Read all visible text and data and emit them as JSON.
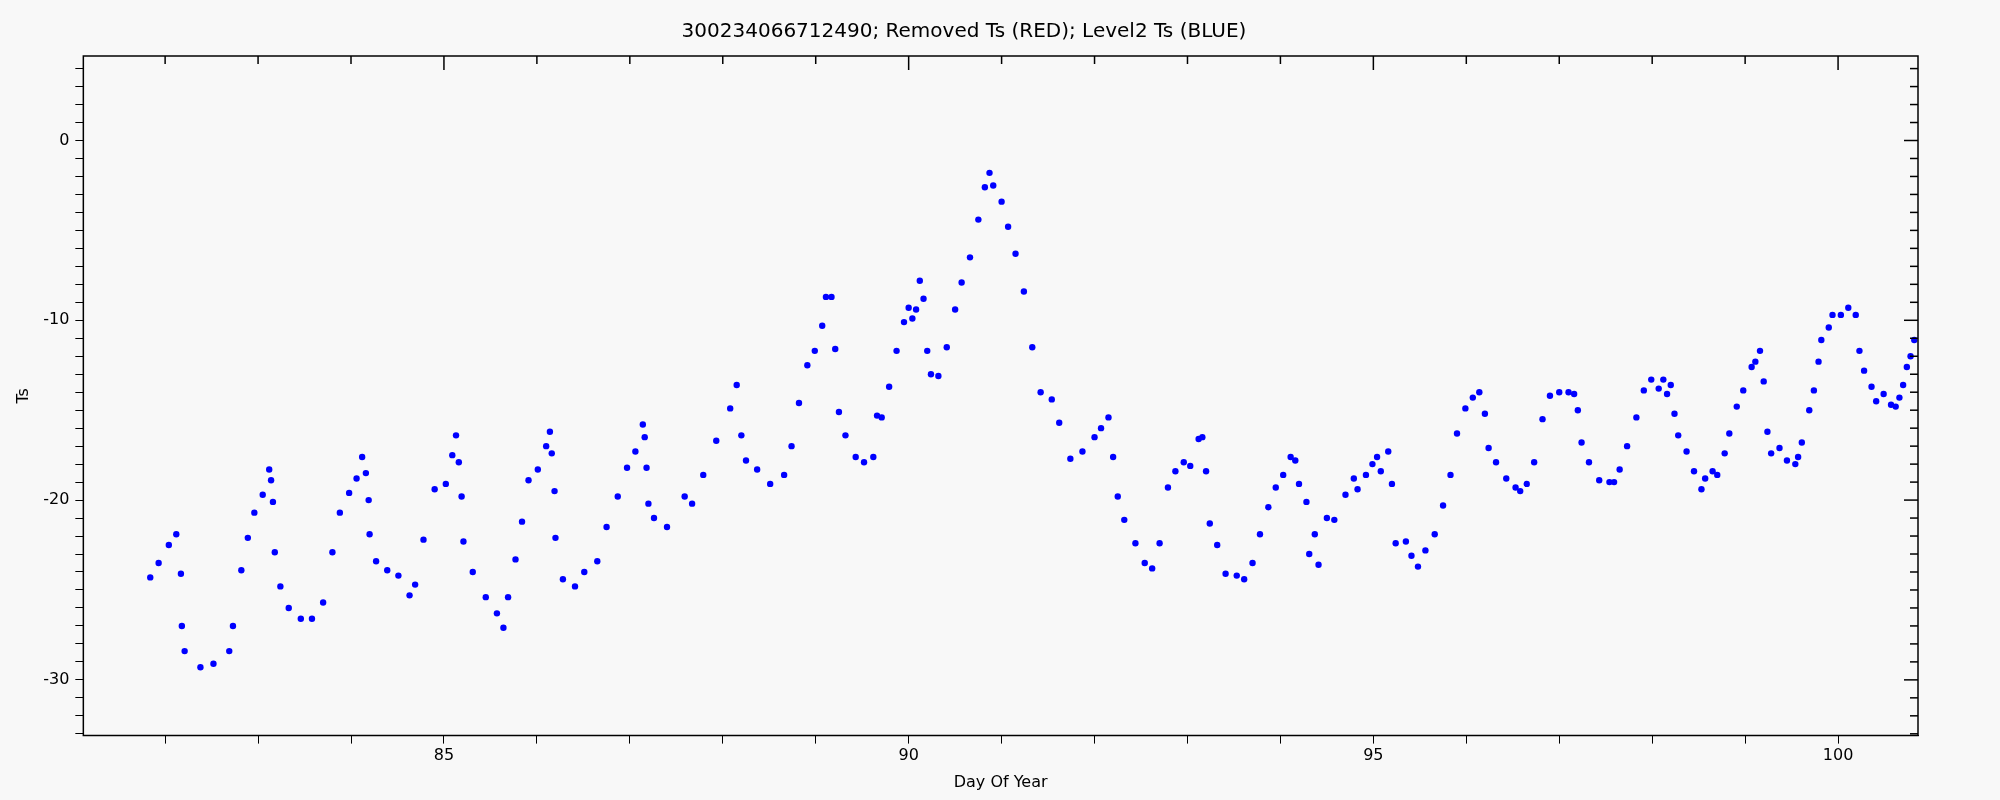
{
  "chart_data": {
    "type": "scatter",
    "title": "300234066712490; Removed Ts (RED); Level2 Ts (BLUE)",
    "xlabel": "Day Of Year",
    "ylabel": "Ts",
    "xlim": [
      81.12,
      100.86
    ],
    "xticks": [
      {
        "value": 82,
        "label": null
      },
      {
        "value": 83,
        "label": null
      },
      {
        "value": 84,
        "label": null
      },
      85,
      {
        "value": 86,
        "label": null
      },
      {
        "value": 87,
        "label": null
      },
      {
        "value": 88,
        "label": null
      },
      {
        "value": 89,
        "label": null
      },
      90,
      {
        "value": 91,
        "label": null
      },
      {
        "value": 92,
        "label": null
      },
      {
        "value": 93,
        "label": null
      },
      {
        "value": 94,
        "label": null
      },
      95,
      {
        "value": 96,
        "label": null
      },
      {
        "value": 97,
        "label": null
      },
      {
        "value": 98,
        "label": null
      },
      {
        "value": 99,
        "label": null
      },
      100
    ],
    "ylim": [
      -33.1,
      4.7
    ],
    "yticks": [
      {
        "value": -33,
        "label": null
      },
      {
        "value": -32,
        "label": null
      },
      {
        "value": -31,
        "label": null
      },
      -30,
      {
        "value": -29,
        "label": null
      },
      {
        "value": -28,
        "label": null
      },
      {
        "value": -27,
        "label": null
      },
      {
        "value": -26,
        "label": null
      },
      {
        "value": -25,
        "label": null
      },
      {
        "value": -24,
        "label": null
      },
      {
        "value": -23,
        "label": null
      },
      {
        "value": -22,
        "label": null
      },
      {
        "value": -21,
        "label": null
      },
      -20,
      {
        "value": -19,
        "label": null
      },
      {
        "value": -18,
        "label": null
      },
      {
        "value": -17,
        "label": null
      },
      {
        "value": -16,
        "label": null
      },
      {
        "value": -15,
        "label": null
      },
      {
        "value": -14,
        "label": null
      },
      {
        "value": -13,
        "label": null
      },
      {
        "value": -12,
        "label": null
      },
      {
        "value": -11,
        "label": null
      },
      -10,
      {
        "value": -9,
        "label": null
      },
      {
        "value": -8,
        "label": null
      },
      {
        "value": -7,
        "label": null
      },
      {
        "value": -6,
        "label": null
      },
      {
        "value": -5,
        "label": null
      },
      {
        "value": -4,
        "label": null
      },
      {
        "value": -3,
        "label": null
      },
      {
        "value": -2,
        "label": null
      },
      {
        "value": -1,
        "label": null
      },
      0,
      {
        "value": 1,
        "label": null
      },
      {
        "value": 2,
        "label": null
      },
      {
        "value": 3,
        "label": null
      },
      {
        "value": 4,
        "label": null
      }
    ],
    "grid": false,
    "legend": false,
    "marker": "circle",
    "series": [
      {
        "color": "#0000ff",
        "x": [
          81.84,
          81.93,
          82.04,
          82.12,
          82.17,
          82.18,
          82.21,
          82.38,
          82.52,
          82.69,
          82.73,
          82.82,
          82.89,
          82.96,
          83.05,
          83.12,
          83.14,
          83.16,
          83.18,
          83.24,
          83.33,
          83.46,
          83.58,
          83.7,
          83.8,
          83.88,
          83.98,
          84.06,
          84.12,
          84.16,
          84.19,
          84.2,
          84.27,
          84.39,
          84.51,
          84.63,
          84.69,
          84.78,
          84.9,
          85.02,
          85.09,
          85.13,
          85.16,
          85.19,
          85.21,
          85.31,
          85.45,
          85.57,
          85.64,
          85.69,
          85.77,
          85.84,
          85.91,
          86.01,
          86.1,
          86.14,
          86.16,
          86.19,
          86.2,
          86.28,
          86.41,
          86.51,
          86.65,
          86.75,
          86.87,
          86.97,
          87.06,
          87.14,
          87.16,
          87.18,
          87.2,
          87.26,
          87.4,
          87.59,
          87.67,
          87.79,
          87.93,
          88.08,
          88.15,
          88.2,
          88.25,
          88.37,
          88.51,
          88.66,
          88.74,
          88.82,
          88.91,
          88.99,
          89.07,
          89.11,
          89.17,
          89.21,
          89.25,
          89.32,
          89.43,
          89.52,
          89.62,
          89.66,
          89.71,
          89.79,
          89.87,
          89.95,
          90.0,
          90.04,
          90.08,
          90.12,
          90.16,
          90.2,
          90.24,
          90.32,
          90.41,
          90.5,
          90.57,
          90.66,
          90.75,
          90.82,
          90.87,
          90.91,
          91.0,
          91.07,
          91.15,
          91.24,
          91.33,
          91.42,
          91.54,
          91.62,
          91.74,
          91.87,
          92.0,
          92.07,
          92.15,
          92.2,
          92.25,
          92.32,
          92.44,
          92.54,
          92.62,
          92.7,
          92.79,
          92.87,
          92.96,
          93.03,
          93.12,
          93.16,
          93.2,
          93.24,
          93.32,
          93.41,
          93.53,
          93.61,
          93.7,
          93.78,
          93.87,
          93.95,
          94.03,
          94.11,
          94.16,
          94.2,
          94.28,
          94.31,
          94.37,
          94.41,
          94.5,
          94.58,
          94.7,
          94.79,
          94.83,
          94.92,
          94.99,
          95.04,
          95.08,
          95.16,
          95.2,
          95.24,
          95.35,
          95.41,
          95.48,
          95.56,
          95.66,
          95.75,
          95.83,
          95.9,
          95.99,
          96.07,
          96.14,
          96.2,
          96.24,
          96.32,
          96.43,
          96.53,
          96.58,
          96.65,
          96.73,
          96.82,
          96.9,
          97.0,
          97.1,
          97.16,
          97.2,
          97.24,
          97.32,
          97.43,
          97.54,
          97.59,
          97.65,
          97.73,
          97.83,
          97.91,
          97.99,
          98.07,
          98.12,
          98.16,
          98.2,
          98.24,
          98.28,
          98.37,
          98.45,
          98.53,
          98.57,
          98.65,
          98.7,
          98.78,
          98.83,
          98.91,
          98.98,
          99.07,
          99.11,
          99.16,
          99.2,
          99.24,
          99.28,
          99.37,
          99.45,
          99.54,
          99.57,
          99.61,
          99.69,
          99.74,
          99.79,
          99.82,
          99.9,
          99.94,
          100.03,
          100.11,
          100.19,
          100.23,
          100.28,
          100.36,
          100.41,
          100.49,
          100.57,
          100.62,
          100.66,
          100.7,
          100.74,
          100.78,
          100.82
        ],
        "values": [
          -24.3,
          -23.5,
          -22.5,
          -21.9,
          -24.1,
          -27.0,
          -28.4,
          -29.3,
          -29.1,
          -28.4,
          -27.0,
          -23.9,
          -22.1,
          -20.7,
          -19.7,
          -18.3,
          -18.9,
          -20.1,
          -22.9,
          -24.8,
          -26.0,
          -26.6,
          -26.6,
          -25.7,
          -22.9,
          -20.7,
          -19.6,
          -18.8,
          -17.6,
          -18.5,
          -20.0,
          -21.9,
          -23.4,
          -23.9,
          -24.2,
          -25.3,
          -24.7,
          -22.2,
          -19.4,
          -19.1,
          -17.5,
          -16.4,
          -17.9,
          -19.8,
          -22.3,
          -24.0,
          -25.4,
          -26.3,
          -27.1,
          -25.4,
          -23.3,
          -21.2,
          -18.9,
          -18.3,
          -17.0,
          -16.2,
          -17.4,
          -19.5,
          -22.1,
          -24.4,
          -24.8,
          -24.0,
          -23.4,
          -21.5,
          -19.8,
          -18.2,
          -17.3,
          -15.8,
          -16.5,
          -18.2,
          -20.2,
          -21.0,
          -21.5,
          -19.8,
          -20.2,
          -18.6,
          -16.7,
          -14.9,
          -13.6,
          -16.4,
          -17.8,
          -18.3,
          -19.1,
          -18.6,
          -17.0,
          -14.6,
          -12.5,
          -11.7,
          -10.3,
          -8.7,
          -8.7,
          -11.6,
          -15.1,
          -16.4,
          -17.6,
          -17.9,
          -17.6,
          -15.3,
          -15.4,
          -13.7,
          -11.7,
          -10.1,
          -9.3,
          -9.9,
          -9.4,
          -7.8,
          -8.8,
          -11.7,
          -13.0,
          -13.1,
          -11.5,
          -9.4,
          -7.9,
          -6.5,
          -4.4,
          -2.6,
          -1.8,
          -2.5,
          -3.4,
          -4.8,
          -6.3,
          -8.4,
          -11.5,
          -14.0,
          -14.4,
          -15.7,
          -17.7,
          -17.3,
          -16.5,
          -16.0,
          -15.4,
          -17.6,
          -19.8,
          -21.1,
          -22.4,
          -23.5,
          -23.8,
          -22.4,
          -19.3,
          -18.4,
          -17.9,
          -18.1,
          -16.6,
          -16.5,
          -18.4,
          -21.3,
          -22.5,
          -24.1,
          -24.2,
          -24.4,
          -23.5,
          -21.9,
          -20.4,
          -19.3,
          -18.6,
          -17.6,
          -17.8,
          -19.1,
          -20.1,
          -23.0,
          -21.9,
          -23.6,
          -21.0,
          -21.1,
          -19.7,
          -18.8,
          -19.4,
          -18.6,
          -18.0,
          -17.6,
          -18.4,
          -17.3,
          -19.1,
          -22.4,
          -22.3,
          -23.1,
          -23.7,
          -22.8,
          -21.9,
          -20.3,
          -18.6,
          -16.3,
          -14.9,
          -14.3,
          -14.0,
          -15.2,
          -17.1,
          -17.9,
          -18.8,
          -19.3,
          -19.5,
          -19.1,
          -17.9,
          -15.5,
          -14.2,
          -14.0,
          -14.0,
          -14.1,
          -15.0,
          -16.8,
          -17.9,
          -18.9,
          -19.0,
          -19.0,
          -18.3,
          -17.0,
          -15.4,
          -13.9,
          -13.3,
          -13.8,
          -13.3,
          -14.1,
          -13.6,
          -15.2,
          -16.4,
          -17.3,
          -18.4,
          -19.4,
          -18.8,
          -18.4,
          -18.6,
          -17.4,
          -16.3,
          -14.8,
          -13.9,
          -12.6,
          -12.3,
          -11.7,
          -13.4,
          -16.2,
          -17.4,
          -17.1,
          -17.8,
          -18.0,
          -17.6,
          -16.8,
          -15.0,
          -13.9,
          -12.3,
          -11.1,
          -10.4,
          -9.7,
          -9.7,
          -9.3,
          -9.7,
          -11.7,
          -12.8,
          -13.7,
          -14.5,
          -14.1,
          -14.7,
          -14.8,
          -14.3,
          -13.6,
          -12.6,
          -12.0,
          -11.1
        ]
      }
    ]
  }
}
